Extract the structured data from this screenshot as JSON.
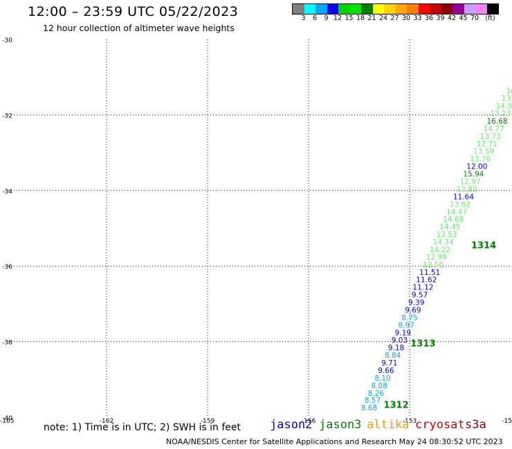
{
  "header": {
    "title": "12:00 – 23:59 UTC 05/22/2023",
    "subtitle": "12 hour collection of altimeter wave heights"
  },
  "legend": {
    "colors": [
      "#808080",
      "#00ffff",
      "#00a8ff",
      "#0000ff",
      "#00d400",
      "#00e600",
      "#008000",
      "#ffff00",
      "#ffd700",
      "#ffaa00",
      "#ff7f00",
      "#ff0000",
      "#cc0000",
      "#8b0000",
      "#990099",
      "#c8a0ff",
      "#ff80ff",
      "#000000"
    ],
    "labels": [
      "3",
      "6",
      "9",
      "12",
      "15",
      "18",
      "21",
      "24",
      "27",
      "30",
      "33",
      "36",
      "39",
      "42",
      "45",
      "70",
      "(ft)"
    ]
  },
  "map": {
    "lon_range": [
      -165,
      -150
    ],
    "lat_range": [
      -40,
      -30
    ],
    "lon_ticks": [
      "-165",
      "-162",
      "-159",
      "-156",
      "-153",
      "-15"
    ],
    "lat_ticks": [
      "-30",
      "-32",
      "-34",
      "-36",
      "-38",
      "-40"
    ]
  },
  "observations": [
    {
      "text": "8.68",
      "color": "#00a8ff",
      "lon": -154.2,
      "lat": -39.82
    },
    {
      "text": "8.57",
      "color": "#00a8ff",
      "lon": -154.1,
      "lat": -39.62
    },
    {
      "text": "8.26",
      "color": "#00a8ff",
      "lon": -154.0,
      "lat": -39.43
    },
    {
      "text": "8.08",
      "color": "#00a8ff",
      "lon": -153.9,
      "lat": -39.23
    },
    {
      "text": "8.10",
      "color": "#00a8ff",
      "lon": -153.8,
      "lat": -39.03
    },
    {
      "text": "9.66",
      "color": "#0000ff",
      "lon": -153.7,
      "lat": -38.83
    },
    {
      "text": "9.71",
      "color": "#0000ff",
      "lon": -153.6,
      "lat": -38.63
    },
    {
      "text": "8.84",
      "color": "#00a8ff",
      "lon": -153.5,
      "lat": -38.43
    },
    {
      "text": "9.18",
      "color": "#0000ff",
      "lon": -153.4,
      "lat": -38.23
    },
    {
      "text": "9.03",
      "color": "#0000ff",
      "lon": -153.3,
      "lat": -38.03
    },
    {
      "text": "9.19",
      "color": "#0000ff",
      "lon": -153.2,
      "lat": -37.83
    },
    {
      "text": "8.97",
      "color": "#00a8ff",
      "lon": -153.1,
      "lat": -37.63
    },
    {
      "text": "8.75",
      "color": "#00a8ff",
      "lon": -153.0,
      "lat": -37.43
    },
    {
      "text": "9.69",
      "color": "#0000ff",
      "lon": -152.9,
      "lat": -37.23
    },
    {
      "text": "9.39",
      "color": "#0000ff",
      "lon": -152.8,
      "lat": -37.03
    },
    {
      "text": "9.57",
      "color": "#0000ff",
      "lon": -152.7,
      "lat": -36.83
    },
    {
      "text": "11.12",
      "color": "#0000ff",
      "lon": -152.6,
      "lat": -36.63
    },
    {
      "text": "11.62",
      "color": "#0000ff",
      "lon": -152.5,
      "lat": -36.43
    },
    {
      "text": "11.51",
      "color": "#0000ff",
      "lon": -152.4,
      "lat": -36.23
    },
    {
      "text": "13.50",
      "color": "#66ee66",
      "lon": -152.3,
      "lat": -36.03
    },
    {
      "text": "12.99",
      "color": "#66ee66",
      "lon": -152.2,
      "lat": -35.83
    },
    {
      "text": "14.22",
      "color": "#66ee66",
      "lon": -152.1,
      "lat": -35.63
    },
    {
      "text": "14.34",
      "color": "#66ee66",
      "lon": -152.0,
      "lat": -35.43
    },
    {
      "text": "13.53",
      "color": "#66ee66",
      "lon": -151.9,
      "lat": -35.23
    },
    {
      "text": "14.45",
      "color": "#66ee66",
      "lon": -151.8,
      "lat": -35.03
    },
    {
      "text": "14.68",
      "color": "#66ee66",
      "lon": -151.7,
      "lat": -34.83
    },
    {
      "text": "14.47",
      "color": "#66ee66",
      "lon": -151.6,
      "lat": -34.63
    },
    {
      "text": "13.62",
      "color": "#66ee66",
      "lon": -151.5,
      "lat": -34.43
    },
    {
      "text": "11.64",
      "color": "#0000ff",
      "lon": -151.4,
      "lat": -34.23
    },
    {
      "text": "12.82",
      "color": "#66ee66",
      "lon": -151.3,
      "lat": -34.03
    },
    {
      "text": "12.97",
      "color": "#66ee66",
      "lon": -151.2,
      "lat": -33.83
    },
    {
      "text": "15.94",
      "color": "#008000",
      "lon": -151.1,
      "lat": -33.63
    },
    {
      "text": "12.00",
      "color": "#0000ff",
      "lon": -151.0,
      "lat": -33.43
    },
    {
      "text": "13.76",
      "color": "#66ee66",
      "lon": -150.9,
      "lat": -33.23
    },
    {
      "text": "13.59",
      "color": "#66ee66",
      "lon": -150.8,
      "lat": -33.03
    },
    {
      "text": "12.71",
      "color": "#66ee66",
      "lon": -150.7,
      "lat": -32.83
    },
    {
      "text": "13.73",
      "color": "#66ee66",
      "lon": -150.6,
      "lat": -32.63
    },
    {
      "text": "14.77",
      "color": "#66ee66",
      "lon": -150.5,
      "lat": -32.43
    },
    {
      "text": "16.68",
      "color": "#008000",
      "lon": -150.4,
      "lat": -32.23
    },
    {
      "text": "13.23",
      "color": "#66ee66",
      "lon": -150.3,
      "lat": -32.03
    },
    {
      "text": "14.9",
      "color": "#66ee66",
      "lon": -150.2,
      "lat": -31.83
    },
    {
      "text": "13.",
      "color": "#66ee66",
      "lon": -150.1,
      "lat": -31.63
    },
    {
      "text": "14",
      "color": "#66ee66",
      "lon": -150.0,
      "lat": -31.43
    }
  ],
  "pass_times": [
    {
      "text": "1312",
      "color": "#008000",
      "lon": -153.4,
      "lat": -39.75
    },
    {
      "text": "1313",
      "color": "#008000",
      "lon": -152.6,
      "lat": -38.13
    },
    {
      "text": "1314",
      "color": "#008000",
      "lon": -150.8,
      "lat": -35.53
    }
  ],
  "bottom": {
    "note": "note:  1) Time is in UTC;  2) SWH is in feet",
    "missions": [
      {
        "name": "jason2",
        "color": "#0000cc"
      },
      {
        "name": "jason3",
        "color": "#008000"
      },
      {
        "name": "altika",
        "color": "#ff9900"
      },
      {
        "name": "cryosat",
        "color": "#cc0000"
      },
      {
        "name": "s3a",
        "color": "#8b0000"
      }
    ],
    "footer": "NOAA/NESDIS Center for Satellite Applications and Research    May 24 08:30:52 UTC 2023"
  }
}
